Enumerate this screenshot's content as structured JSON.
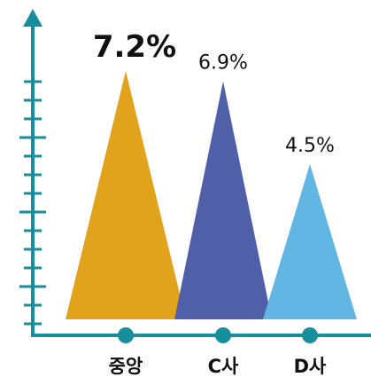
{
  "chart_data": {
    "type": "bar",
    "categories": [
      "중앙",
      "C사",
      "D사"
    ],
    "values": [
      7.2,
      6.9,
      4.5
    ],
    "value_labels": [
      "7.2%",
      "6.9%",
      "4.5%"
    ],
    "ylim": [
      0,
      8
    ],
    "grid": false,
    "colors": {
      "bars": [
        "#E2A31C",
        "#5060A8",
        "#62B6E3"
      ],
      "axis": "#178E9B",
      "highlight_label": "#E0301E",
      "label": "#111111"
    }
  }
}
